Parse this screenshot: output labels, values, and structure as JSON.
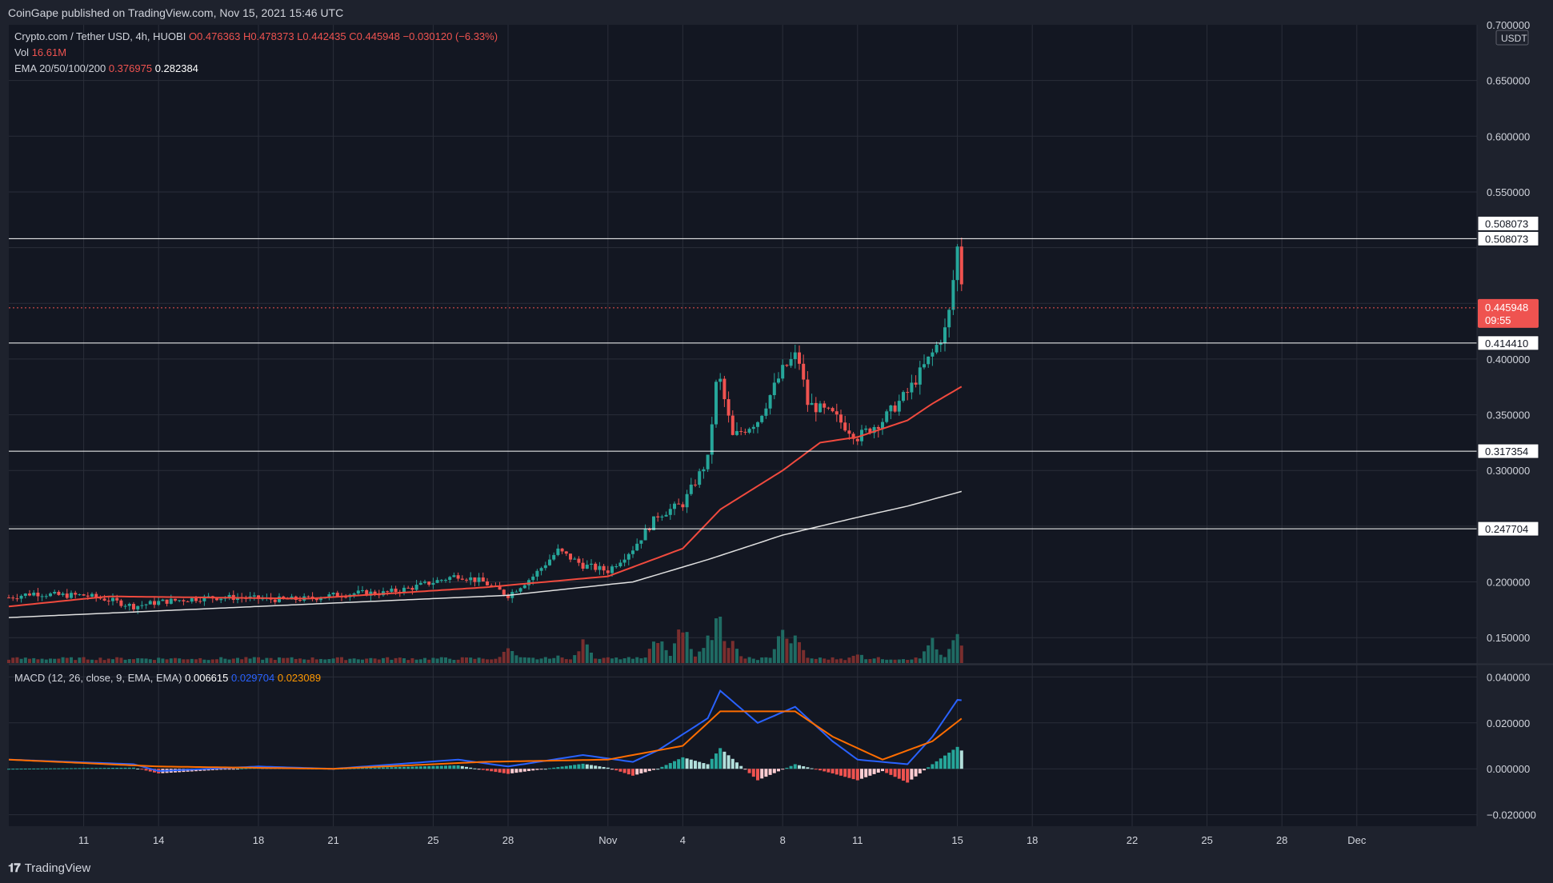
{
  "publisher": "CoinGape published on TradingView.com, Nov 15, 2021 15:46 UTC",
  "legend": {
    "symbol": "Crypto.com / Tether USD, 4h, HUOBI",
    "open": "O0.476363",
    "high": "H0.478373",
    "low": "L0.442435",
    "close": "C0.445948",
    "change": "−0.030120 (−6.33%)",
    "vol_label": "Vol",
    "vol_value": "16.61M",
    "ema_label": "EMA 20/50/100/200",
    "ema_value_1": "0.376975",
    "ema_value_2": "0.282384",
    "macd_label": "MACD (12, 26, close, 9, EMA, EMA)",
    "macd_hist": "0.006615",
    "macd_line": "0.029704",
    "macd_signal": "0.023089"
  },
  "brand": "TradingView",
  "currency": "USDT",
  "colors": {
    "background": "#1e222d",
    "up": "#26a69a",
    "down": "#ef5350",
    "ema_red": "#f04a3e",
    "ema_white": "#e0e0e0",
    "macd_line": "#2962ff",
    "signal_line": "#ff6d00",
    "grid": "#2a2e39"
  },
  "chart_data": {
    "type": "candlestick",
    "x_ticks": [
      "11",
      "14",
      "18",
      "21",
      "25",
      "28",
      "Nov",
      "4",
      "8",
      "11",
      "15",
      "18",
      "22",
      "25",
      "28",
      "Dec"
    ],
    "price_axis_ticks": [
      "0.700000",
      "0.650000",
      "0.600000",
      "0.550000",
      "0.400000",
      "0.350000",
      "0.300000",
      "0.200000",
      "0.150000"
    ],
    "ylim": [
      0.12,
      0.7
    ],
    "horizontal_levels": [
      {
        "value": 0.508073,
        "label": "0.508073"
      },
      {
        "value": 0.41441,
        "label": "0.414410"
      },
      {
        "value": 0.317354,
        "label": "0.317354"
      },
      {
        "value": 0.247704,
        "label": "0.247704"
      }
    ],
    "top_level_tag": "0.508073",
    "current_price": {
      "value": 0.445948,
      "label": "0.445948",
      "countdown": "09:55"
    },
    "price_anchors": [
      [
        "Oct 8",
        0.186
      ],
      [
        "Oct 9",
        0.19
      ],
      [
        "Oct 10",
        0.188
      ],
      [
        "Oct 11",
        0.188
      ],
      [
        "Oct 12",
        0.184
      ],
      [
        "Oct 13",
        0.178
      ],
      [
        "Oct 14",
        0.182
      ],
      [
        "Oct 15",
        0.184
      ],
      [
        "Oct 16",
        0.186
      ],
      [
        "Oct 17",
        0.186
      ],
      [
        "Oct 18",
        0.185
      ],
      [
        "Oct 19",
        0.184
      ],
      [
        "Oct 20",
        0.185
      ],
      [
        "Oct 21",
        0.188
      ],
      [
        "Oct 22",
        0.19
      ],
      [
        "Oct 23",
        0.19
      ],
      [
        "Oct 24",
        0.194
      ],
      [
        "Oct 25",
        0.2
      ],
      [
        "Oct 26",
        0.206
      ],
      [
        "Oct 27",
        0.2
      ],
      [
        "Oct 28",
        0.188
      ],
      [
        "Oct 29",
        0.205
      ],
      [
        "Oct 30",
        0.228
      ],
      [
        "Oct 31",
        0.215
      ],
      [
        "Nov 1",
        0.21
      ],
      [
        "Nov 2",
        0.23
      ],
      [
        "Nov 3",
        0.26
      ],
      [
        "Nov 4",
        0.27
      ],
      [
        "Nov 5",
        0.31
      ],
      [
        "Nov 5.4",
        0.39
      ],
      [
        "Nov 6",
        0.33
      ],
      [
        "Nov 7",
        0.345
      ],
      [
        "Nov 8",
        0.39
      ],
      [
        "Nov 8.6",
        0.405
      ],
      [
        "Nov 9",
        0.36
      ],
      [
        "Nov 10",
        0.35
      ],
      [
        "Nov 11",
        0.33
      ],
      [
        "Nov 12",
        0.345
      ],
      [
        "Nov 13",
        0.37
      ],
      [
        "Nov 14",
        0.405
      ],
      [
        "Nov 14.6",
        0.43
      ],
      [
        "Nov 15",
        0.5
      ],
      [
        "Nov 15.3",
        0.446
      ]
    ],
    "ema_red_anchors": [
      [
        "Oct 8",
        0.178
      ],
      [
        "Oct 12",
        0.187
      ],
      [
        "Oct 20",
        0.185
      ],
      [
        "Oct 27",
        0.195
      ],
      [
        "Nov 1",
        0.205
      ],
      [
        "Nov 4",
        0.23
      ],
      [
        "Nov 5.5",
        0.265
      ],
      [
        "Nov 8",
        0.3
      ],
      [
        "Nov 9.5",
        0.325
      ],
      [
        "Nov 11",
        0.33
      ],
      [
        "Nov 13",
        0.345
      ],
      [
        "Nov 14",
        0.36
      ],
      [
        "Nov 15.3",
        0.377
      ]
    ],
    "ema_white_anchors": [
      [
        "Oct 8",
        0.168
      ],
      [
        "Oct 18",
        0.178
      ],
      [
        "Oct 28",
        0.188
      ],
      [
        "Nov 2",
        0.2
      ],
      [
        "Nov 5",
        0.22
      ],
      [
        "Nov 8",
        0.242
      ],
      [
        "Nov 11",
        0.258
      ],
      [
        "Nov 13",
        0.268
      ],
      [
        "Nov 15.3",
        0.282
      ]
    ],
    "volume_spikes": [
      [
        "Oct 28",
        0.35
      ],
      [
        "Oct 30",
        0.15
      ],
      [
        "Oct 31",
        0.45
      ],
      [
        "Nov 3",
        0.55
      ],
      [
        "Nov 4",
        0.8
      ],
      [
        "Nov 5",
        0.55
      ],
      [
        "Nov 5.4",
        1.0
      ],
      [
        "Nov 6",
        0.4
      ],
      [
        "Nov 8",
        0.65
      ],
      [
        "Nov 8.5",
        0.5
      ],
      [
        "Nov 11",
        0.2
      ],
      [
        "Nov 14",
        0.45
      ],
      [
        "Nov 15",
        0.6
      ],
      [
        "Nov 15.3",
        0.48
      ]
    ],
    "macd": {
      "axis_ticks": [
        "0.040000",
        "0.020000",
        "0.000000",
        "−0.020000"
      ],
      "ylim": [
        -0.025,
        0.045
      ],
      "macd_line_anchors": [
        [
          "Oct 8",
          0.004
        ],
        [
          "Oct 13",
          0.002
        ],
        [
          "Oct 14",
          -0.001
        ],
        [
          "Oct 18",
          0.001
        ],
        [
          "Oct 21",
          0.0
        ],
        [
          "Oct 26",
          0.004
        ],
        [
          "Oct 28",
          0.001
        ],
        [
          "Oct 31",
          0.006
        ],
        [
          "Nov 2",
          0.003
        ],
        [
          "Nov 3",
          0.008
        ],
        [
          "Nov 4",
          0.015
        ],
        [
          "Nov 5",
          0.022
        ],
        [
          "Nov 5.5",
          0.034
        ],
        [
          "Nov 7",
          0.02
        ],
        [
          "Nov 8.5",
          0.027
        ],
        [
          "Nov 10",
          0.012
        ],
        [
          "Nov 11",
          0.004
        ],
        [
          "Nov 13",
          0.002
        ],
        [
          "Nov 14",
          0.014
        ],
        [
          "Nov 15",
          0.03
        ],
        [
          "Nov 15.3",
          0.0297
        ]
      ],
      "signal_line_anchors": [
        [
          "Oct 8",
          0.004
        ],
        [
          "Oct 14",
          0.001
        ],
        [
          "Oct 21",
          0.0
        ],
        [
          "Oct 27",
          0.003
        ],
        [
          "Nov 1",
          0.004
        ],
        [
          "Nov 4",
          0.01
        ],
        [
          "Nov 5.5",
          0.025
        ],
        [
          "Nov 8.5",
          0.025
        ],
        [
          "Nov 10",
          0.014
        ],
        [
          "Nov 12",
          0.004
        ],
        [
          "Nov 14",
          0.012
        ],
        [
          "Nov 15.3",
          0.023
        ]
      ]
    }
  }
}
